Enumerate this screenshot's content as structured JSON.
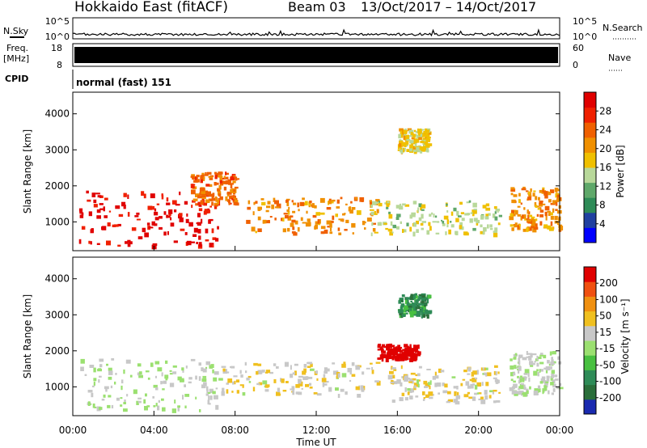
{
  "header": {
    "station": "Hokkaido East (fitACF)",
    "beam": "Beam 03",
    "dates": "13/Oct/2017 – 14/Oct/2017"
  },
  "noise_panel": {
    "left_label": "N.Sky",
    "right_label": "N.Search",
    "ticks_left": [
      "10^5",
      "10^0"
    ],
    "ticks_right": [
      "10^5",
      "10^0"
    ]
  },
  "freq_panel": {
    "left_label_1": "Freq.",
    "left_label_2": "[MHz]",
    "left_ticks": [
      "18",
      "8"
    ],
    "right_label": "Nave",
    "right_ticks": [
      "60",
      "0"
    ]
  },
  "cpid_panel": {
    "label": "CPID",
    "text": "normal (fast) 151"
  },
  "power_panel": {
    "ylabel": "Slant Range [km]",
    "yticks": [
      "4000",
      "3000",
      "2000",
      "1000"
    ],
    "colorbar_label": "Power [dB]",
    "colorbar_ticks": [
      "28",
      "24",
      "20",
      "16",
      "12",
      "8",
      "4"
    ],
    "colors": [
      "#0000ff",
      "#2040a0",
      "#2e8b57",
      "#5fa86a",
      "#b8d89a",
      "#f0c000",
      "#f09000",
      "#f06000",
      "#f02000",
      "#e00000"
    ]
  },
  "velocity_panel": {
    "ylabel": "Slant Range [km]",
    "yticks": [
      "4000",
      "3000",
      "2000",
      "1000"
    ],
    "colorbar_label": "Velocity [m s⁻¹]",
    "colorbar_ticks": [
      "200",
      "100",
      "50",
      "15",
      "-15",
      "-50",
      "-100",
      "-200"
    ],
    "colors": [
      "#1a2ab0",
      "#2a6e3a",
      "#2e8b57",
      "#48c040",
      "#9be070",
      "#c8c8c8",
      "#f0c020",
      "#f09010",
      "#f05010",
      "#e00000"
    ]
  },
  "xaxis": {
    "ticks": [
      "00:00",
      "04:00",
      "08:00",
      "12:00",
      "16:00",
      "20:00",
      "00:00"
    ],
    "label": "Time UT"
  },
  "chart_data": [
    {
      "type": "line",
      "title": "N.Sky",
      "x_range_hours": [
        0,
        24
      ],
      "y_scale": "log",
      "ylim": [
        1,
        100000
      ],
      "series": [
        {
          "values": [
            3,
            3,
            3,
            4,
            3,
            3,
            3,
            3,
            3,
            3,
            3,
            3,
            3,
            3,
            3,
            3,
            3,
            3,
            3,
            3,
            3,
            3,
            3,
            3,
            3
          ]
        }
      ]
    },
    {
      "type": "area",
      "title": "Freq. [MHz]",
      "x_range_hours": [
        0,
        24
      ],
      "ylim": [
        8,
        18
      ],
      "note": "band filled 8–18"
    },
    {
      "type": "heatmap",
      "title": "Power [dB]",
      "x_range_hours": [
        0,
        24
      ],
      "ylim_km": [
        200,
        4600
      ],
      "colorbar_range": [
        0,
        30
      ],
      "regions": [
        {
          "t_start": 0.3,
          "t_end": 7.2,
          "r_low": 350,
          "r_high": 1900,
          "power_db": 28
        },
        {
          "t_start": 5.8,
          "t_end": 8.0,
          "r_low": 1500,
          "r_high": 2400,
          "power_db": 22
        },
        {
          "t_start": 8.5,
          "t_end": 15.0,
          "r_low": 700,
          "r_high": 1700,
          "power_db": 20
        },
        {
          "t_start": 14.5,
          "t_end": 21.0,
          "r_low": 700,
          "r_high": 1600,
          "power_db": 14
        },
        {
          "t_start": 16.0,
          "t_end": 17.5,
          "r_low": 3000,
          "r_high": 3600,
          "power_db": 16
        },
        {
          "t_start": 21.5,
          "t_end": 24.0,
          "r_low": 800,
          "r_high": 2000,
          "power_db": 20
        }
      ]
    },
    {
      "type": "heatmap",
      "title": "Velocity [m s⁻¹]",
      "x_range_hours": [
        0,
        24
      ],
      "ylim_km": [
        200,
        4600
      ],
      "colorbar_range": [
        -200,
        200
      ],
      "regions": [
        {
          "t_start": 0.3,
          "t_end": 7.2,
          "r_low": 350,
          "r_high": 1800,
          "velocity": 0
        },
        {
          "t_start": 7.2,
          "t_end": 15.0,
          "r_low": 800,
          "r_high": 1700,
          "velocity": 30
        },
        {
          "t_start": 15.0,
          "t_end": 17.0,
          "r_low": 1800,
          "r_high": 2200,
          "velocity": 200
        },
        {
          "t_start": 15.5,
          "t_end": 21.0,
          "r_low": 600,
          "r_high": 1600,
          "velocity": 30
        },
        {
          "t_start": 16.0,
          "t_end": 17.5,
          "r_low": 3000,
          "r_high": 3600,
          "velocity": -100
        },
        {
          "t_start": 21.5,
          "t_end": 24.0,
          "r_low": 800,
          "r_high": 2000,
          "velocity": 0
        }
      ]
    }
  ]
}
